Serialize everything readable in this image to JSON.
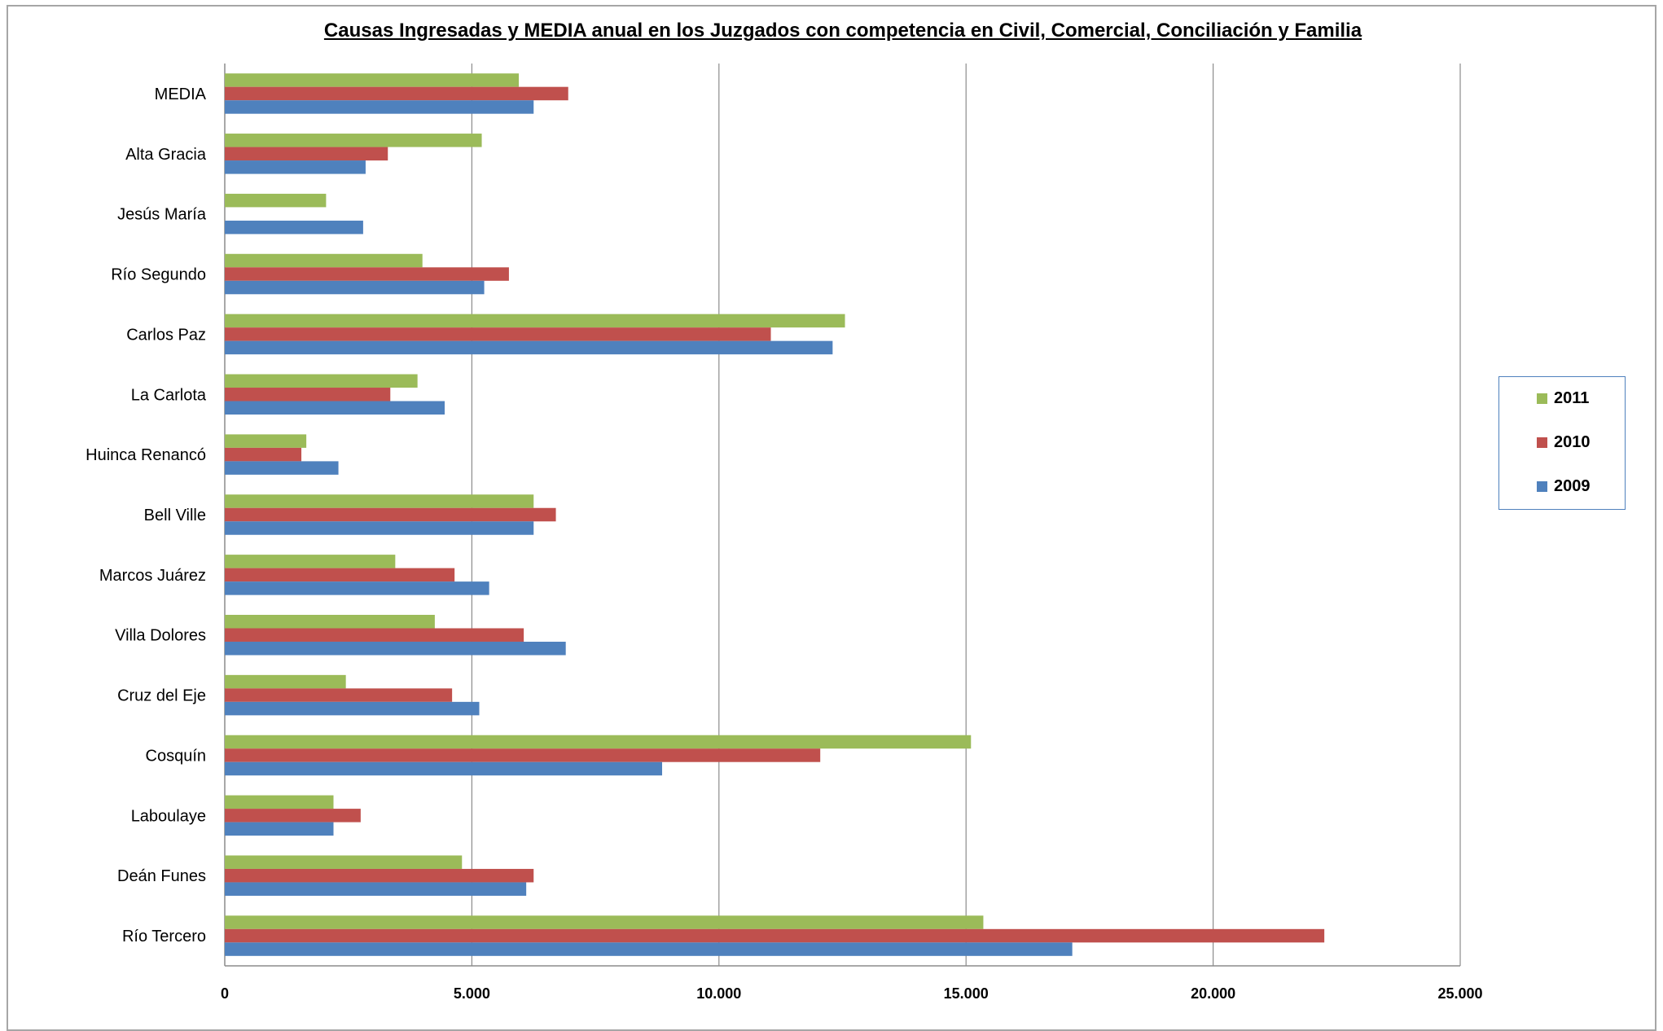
{
  "chart_data": {
    "type": "bar",
    "orientation": "horizontal",
    "title": "Causas Ingresadas y MEDIA anual en los Juzgados con competencia en Civil, Comercial, Conciliación y Familia",
    "xlabel": "",
    "ylabel": "",
    "xlim": [
      0,
      25000
    ],
    "x_ticks": [
      "0",
      "5.000",
      "10.000",
      "15.000",
      "20.000",
      "25.000"
    ],
    "x_tick_values": [
      0,
      5000,
      10000,
      15000,
      20000,
      25000
    ],
    "grid": "vertical",
    "legend_position": "right",
    "categories": [
      "MEDIA",
      "Alta Gracia",
      "Jesús María",
      "Río Segundo",
      "Carlos Paz",
      "La Carlota",
      "Huinca Renancó",
      "Bell Ville",
      "Marcos Juárez",
      "Villa Dolores",
      "Cruz del Eje",
      "Cosquín",
      "Laboulaye",
      "Deán Funes",
      "Río Tercero"
    ],
    "series": [
      {
        "name": "2011",
        "color": "#9bbb59",
        "values": [
          5950,
          5200,
          2050,
          4000,
          12550,
          3900,
          1650,
          6250,
          3450,
          4250,
          2450,
          15100,
          2200,
          4800,
          15350
        ]
      },
      {
        "name": "2010",
        "color": "#c0504d",
        "values": [
          6950,
          3300,
          0,
          5750,
          11050,
          3350,
          1550,
          6700,
          4650,
          6050,
          4600,
          12050,
          2750,
          6250,
          22250
        ]
      },
      {
        "name": "2009",
        "color": "#4f81bd",
        "values": [
          6250,
          2850,
          2800,
          5250,
          12300,
          4450,
          2300,
          6250,
          5350,
          6900,
          5150,
          8850,
          2200,
          6100,
          17150
        ]
      }
    ]
  }
}
